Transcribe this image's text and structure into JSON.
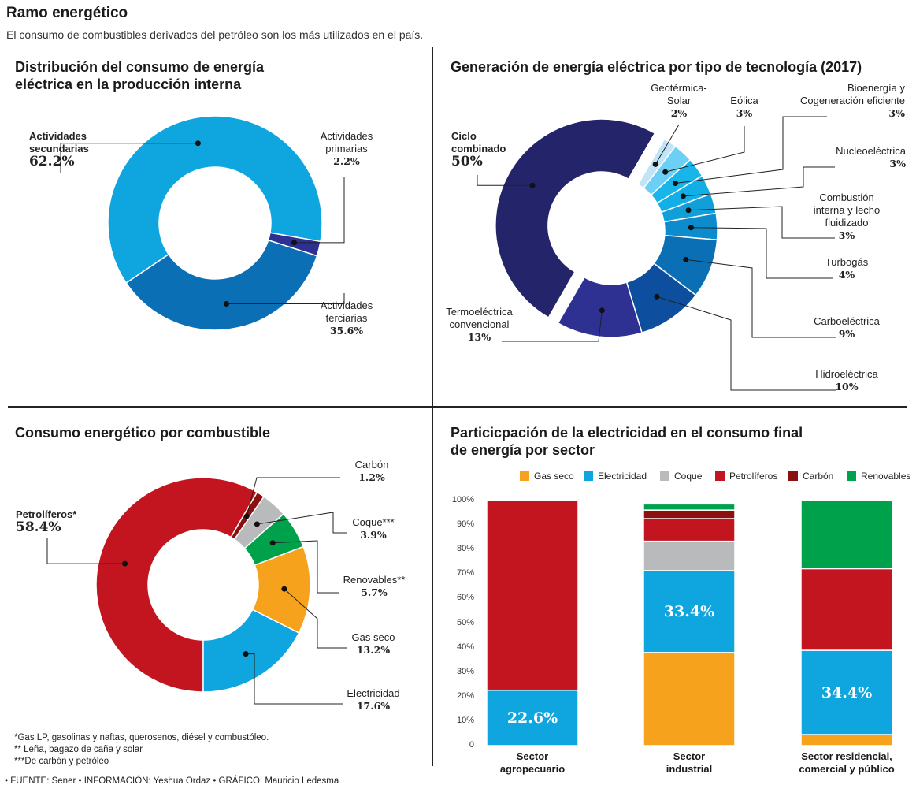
{
  "header": {
    "title": "Ramo energético",
    "subtitle": "El consumo de combustibles derivados del petróleo son los más utilizados en el país."
  },
  "panel1": {
    "title_line1": "Distribución del consumo de energía",
    "title_line2": "eléctrica en la producción interna"
  },
  "panel2": {
    "title": "Generación de energía eléctrica por tipo de tecnología (2017)"
  },
  "panel3": {
    "title": "Consumo energético por combustible"
  },
  "panel4": {
    "title_line1": "Particicpación de la electricidad en el consumo final",
    "title_line2": "de energía por sector"
  },
  "footnotes": {
    "f1": "*Gas LP, gasolinas y naftas, querosenos, diésel y combustóleo.",
    "f2": "** Leña, bagazo de caña y solar",
    "f3": "***De carbón y petróleo",
    "source": "• FUENTE: Sener •  INFORMACIÓN: Yeshua Ordaz • GRÁFICO: Mauricio Ledesma"
  },
  "colors": {
    "sky": "#0fa6df",
    "mid_blue": "#0a6fb5",
    "navy": "#2e3192",
    "dark_navy": "#24246b",
    "red": "#c3151f",
    "green": "#00a14b",
    "orange": "#f6a21d",
    "gray": "#b8babc",
    "dark_red": "#8b1010"
  },
  "chart_data": [
    {
      "type": "pie",
      "title": "Distribución del consumo de energía eléctrica en la producción interna",
      "slices": [
        {
          "name": "Actividades\nsecundarias",
          "value": 62.2,
          "label": "62.2%",
          "color": "#0fa6df"
        },
        {
          "name": "Actividades\nprimarias",
          "value": 2.2,
          "label": "2.2%",
          "color": "#2e3192"
        },
        {
          "name": "Actividades\nterciarias",
          "value": 35.6,
          "label": "35.6%",
          "color": "#0a6fb5"
        }
      ]
    },
    {
      "type": "pie",
      "title": "Generación de energía eléctrica por tipo de tecnología (2017)",
      "slices": [
        {
          "name": "Ciclo\ncombinado",
          "value": 50,
          "label": "50%",
          "color": "#24246b"
        },
        {
          "name": "Geotérmica-\nSolar",
          "value": 2,
          "label": "2%",
          "color": "#bfe5f7"
        },
        {
          "name": "Eólica",
          "value": 3,
          "label": "3%",
          "color": "#6ccff6"
        },
        {
          "name": "Bioenergía y\nCogeneración eficiente",
          "value": 3,
          "label": "3%",
          "color": "#17b5ea"
        },
        {
          "name": "Nucleoeléctrica",
          "value": 3,
          "label": "3%",
          "color": "#12aee6"
        },
        {
          "name": "Combustión\ninterna y lecho\nfluidizado",
          "value": 3,
          "label": "3%",
          "color": "#109fd9"
        },
        {
          "name": "Turbogás",
          "value": 4,
          "label": "4%",
          "color": "#0d8ccd"
        },
        {
          "name": "Carboeléctrica",
          "value": 9,
          "label": "9%",
          "color": "#0a6fb5"
        },
        {
          "name": "Hidroeléctrica",
          "value": 10,
          "label": "10%",
          "color": "#0d4f9e"
        },
        {
          "name": "Termoeléctrica\nconvencional",
          "value": 13,
          "label": "13%",
          "color": "#2e3192"
        }
      ]
    },
    {
      "type": "pie",
      "title": "Consumo energético por combustible",
      "slices": [
        {
          "name": "Petrolíferos*",
          "value": 58.4,
          "label": "58.4%",
          "color": "#c3151f"
        },
        {
          "name": "Carbón",
          "value": 1.2,
          "label": "1.2%",
          "color": "#8b1010"
        },
        {
          "name": "Coque***",
          "value": 3.9,
          "label": "3.9%",
          "color": "#b8babc"
        },
        {
          "name": "Renovables**",
          "value": 5.7,
          "label": "5.7%",
          "color": "#00a14b"
        },
        {
          "name": "Gas seco",
          "value": 13.2,
          "label": "13.2%",
          "color": "#f6a21d"
        },
        {
          "name": "Electricidad",
          "value": 17.6,
          "label": "17.6%",
          "color": "#0fa6df"
        }
      ]
    },
    {
      "type": "bar",
      "stacked": true,
      "title": "Particicpación de la electricidad en el consumo final de energía por sector",
      "ylim": [
        0,
        100
      ],
      "yticks": [
        "0",
        "10%",
        "20%",
        "30%",
        "40%",
        "50%",
        "60%",
        "70%",
        "80%",
        "90%",
        "100%"
      ],
      "legend": [
        "Gas seco",
        "Electricidad",
        "Coque",
        "Petrolíferos",
        "Carbón",
        "Renovables"
      ],
      "legend_colors": [
        "#f6a21d",
        "#0fa6df",
        "#b8babc",
        "#c3151f",
        "#8b1010",
        "#00a14b"
      ],
      "categories": [
        "Sector\nagropecuario",
        "Sector\nindustrial",
        "Sector residencial,\ncomercial y público"
      ],
      "series": [
        {
          "name": "Gas seco",
          "values": [
            0,
            38.0,
            4.5
          ]
        },
        {
          "name": "Electricidad",
          "values": [
            22.6,
            33.4,
            34.4
          ]
        },
        {
          "name": "Coque",
          "values": [
            0,
            12.0,
            0
          ]
        },
        {
          "name": "Petrolíferos",
          "values": [
            77.4,
            9.2,
            33.3
          ]
        },
        {
          "name": "Carbón",
          "values": [
            0,
            3.5,
            0
          ]
        },
        {
          "name": "Renovables",
          "values": [
            0,
            2.5,
            27.8
          ]
        }
      ],
      "data_labels": [
        "22.6%",
        "33.4%",
        "34.4%"
      ]
    }
  ]
}
